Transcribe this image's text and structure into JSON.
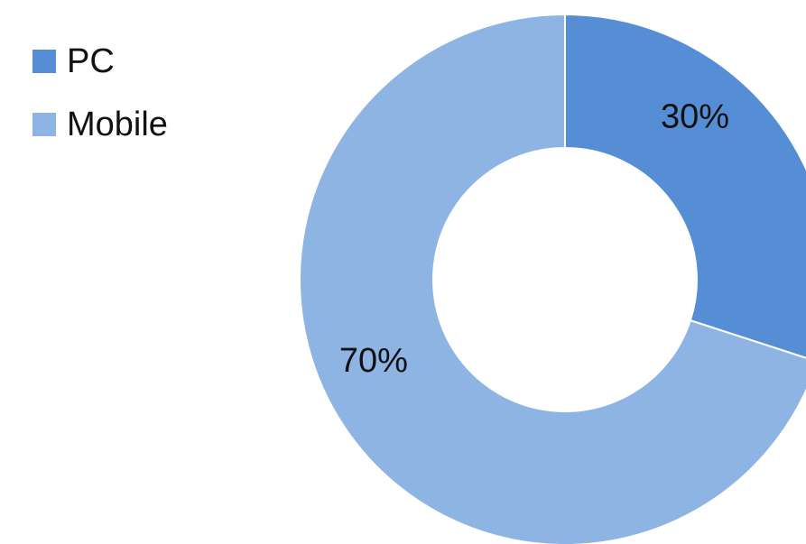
{
  "chart_data": {
    "type": "pie",
    "donut": true,
    "categories": [
      "PC",
      "Mobile"
    ],
    "values": [
      30,
      70
    ],
    "data_labels": [
      "30%",
      "70%"
    ],
    "colors": [
      "#558ED5",
      "#8EB4E3"
    ],
    "legend_position": "top-left",
    "title": ""
  }
}
